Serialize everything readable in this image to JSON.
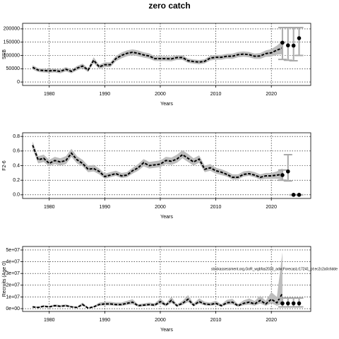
{
  "chart_data": [
    {
      "type": "line",
      "title": "zero catch",
      "xlabel": "Years",
      "ylabel": "SSB",
      "grid": true,
      "x": [
        1977,
        1978,
        1979,
        1980,
        1981,
        1982,
        1983,
        1984,
        1985,
        1986,
        1987,
        1988,
        1989,
        1990,
        1991,
        1992,
        1993,
        1994,
        1995,
        1996,
        1997,
        1998,
        1999,
        2000,
        2001,
        2002,
        2003,
        2004,
        2005,
        2006,
        2007,
        2008,
        2009,
        2010,
        2011,
        2012,
        2013,
        2014,
        2015,
        2016,
        2017,
        2018,
        2019,
        2020,
        2021,
        2022
      ],
      "values": [
        55000,
        45000,
        43000,
        42000,
        43000,
        40000,
        48000,
        40000,
        52000,
        60000,
        45000,
        82000,
        57000,
        65000,
        65000,
        88000,
        100000,
        108000,
        112000,
        108000,
        102000,
        98000,
        88000,
        88000,
        88000,
        87000,
        92000,
        92000,
        80000,
        77000,
        75000,
        78000,
        90000,
        93000,
        93000,
        97000,
        97000,
        103000,
        105000,
        103000,
        97000,
        98000,
        107000,
        110000,
        120000,
        128000
      ],
      "lower": [
        47000,
        38000,
        36000,
        35000,
        36000,
        33000,
        40000,
        33000,
        44000,
        51000,
        38000,
        71000,
        49000,
        56000,
        56000,
        78000,
        89000,
        97000,
        101000,
        97000,
        92000,
        88000,
        79000,
        79000,
        79000,
        78000,
        83000,
        83000,
        72000,
        69000,
        67000,
        70000,
        81000,
        84000,
        84000,
        88000,
        87000,
        93000,
        95000,
        93000,
        87000,
        87000,
        95000,
        96000,
        103000,
        105000
      ],
      "upper": [
        63000,
        52000,
        50000,
        49000,
        50000,
        47000,
        56000,
        47000,
        60000,
        69000,
        52000,
        93000,
        65000,
        74000,
        74000,
        98000,
        111000,
        119000,
        123000,
        119000,
        112000,
        108000,
        97000,
        97000,
        97000,
        96000,
        101000,
        101000,
        88000,
        85000,
        83000,
        86000,
        99000,
        102000,
        102000,
        106000,
        107000,
        113000,
        115000,
        113000,
        107000,
        109000,
        119000,
        124000,
        137000,
        155000
      ],
      "forecast": {
        "x": [
          2022,
          2023,
          2024,
          2025
        ],
        "values": [
          148000,
          138000,
          137000,
          165000
        ],
        "low": [
          85000,
          82000,
          80000,
          100000
        ],
        "high": [
          205000,
          205000,
          205000,
          205000
        ]
      },
      "xlim": [
        1975.2,
        2027.1
      ],
      "xticks": [
        1980,
        1990,
        2000,
        2010,
        2020
      ],
      "ylim": [
        -13000,
        221000
      ],
      "yticks": [
        0,
        50000,
        100000,
        150000,
        200000
      ]
    },
    {
      "type": "line",
      "xlabel": "Years",
      "ylabel": "F2-6",
      "grid": true,
      "x": [
        1977,
        1978,
        1979,
        1980,
        1981,
        1982,
        1983,
        1984,
        1985,
        1986,
        1987,
        1988,
        1989,
        1990,
        1991,
        1992,
        1993,
        1994,
        1995,
        1996,
        1997,
        1998,
        1999,
        2000,
        2001,
        2002,
        2003,
        2004,
        2005,
        2006,
        2007,
        2008,
        2009,
        2010,
        2011,
        2012,
        2013,
        2014,
        2015,
        2016,
        2017,
        2018,
        2019,
        2020,
        2021,
        2022
      ],
      "values": [
        0.68,
        0.48,
        0.5,
        0.43,
        0.47,
        0.45,
        0.47,
        0.57,
        0.48,
        0.43,
        0.35,
        0.36,
        0.32,
        0.25,
        0.27,
        0.29,
        0.26,
        0.27,
        0.33,
        0.37,
        0.44,
        0.4,
        0.41,
        0.42,
        0.47,
        0.46,
        0.49,
        0.55,
        0.5,
        0.45,
        0.49,
        0.35,
        0.37,
        0.33,
        0.31,
        0.28,
        0.24,
        0.24,
        0.28,
        0.29,
        0.27,
        0.24,
        0.26,
        0.26,
        0.27,
        0.28
      ],
      "lower": [
        0.63,
        0.43,
        0.45,
        0.39,
        0.42,
        0.4,
        0.42,
        0.52,
        0.43,
        0.39,
        0.31,
        0.32,
        0.28,
        0.22,
        0.24,
        0.26,
        0.23,
        0.24,
        0.29,
        0.33,
        0.39,
        0.36,
        0.37,
        0.38,
        0.42,
        0.41,
        0.44,
        0.5,
        0.45,
        0.4,
        0.44,
        0.31,
        0.33,
        0.29,
        0.27,
        0.25,
        0.21,
        0.21,
        0.25,
        0.26,
        0.24,
        0.21,
        0.22,
        0.22,
        0.22,
        0.21
      ],
      "upper": [
        0.73,
        0.53,
        0.55,
        0.48,
        0.52,
        0.5,
        0.53,
        0.63,
        0.53,
        0.48,
        0.4,
        0.41,
        0.36,
        0.29,
        0.31,
        0.33,
        0.3,
        0.31,
        0.37,
        0.42,
        0.49,
        0.45,
        0.46,
        0.47,
        0.52,
        0.51,
        0.55,
        0.61,
        0.56,
        0.5,
        0.54,
        0.4,
        0.42,
        0.37,
        0.35,
        0.32,
        0.28,
        0.28,
        0.32,
        0.33,
        0.31,
        0.28,
        0.3,
        0.3,
        0.32,
        0.36
      ],
      "forecast": {
        "x": [
          2022,
          2023,
          2024,
          2025
        ],
        "values": [
          0.27,
          0.32,
          0,
          0
        ],
        "low": [
          0.2,
          0.19,
          0,
          0
        ],
        "high": [
          0.34,
          0.55,
          0,
          0
        ]
      },
      "xlim": [
        1975.2,
        2027.1
      ],
      "xticks": [
        1980,
        1990,
        2000,
        2010,
        2020
      ],
      "ylim": [
        -0.05,
        0.85
      ],
      "yticks": [
        {
          "value": 0,
          "label": "0.0"
        },
        0.2,
        0.4,
        0.6,
        0.8
      ]
    },
    {
      "type": "line",
      "xlabel": "Years",
      "ylabel": "Recruits (Age 0)",
      "grid": true,
      "annotation": "stockassessment.org,GoR_wgbfas2023_advcForecast,r17241_pt:ec2c2a0c6dde",
      "x": [
        1977,
        1978,
        1979,
        1980,
        1981,
        1982,
        1983,
        1984,
        1985,
        1986,
        1987,
        1988,
        1989,
        1990,
        1991,
        1992,
        1993,
        1994,
        1995,
        1996,
        1997,
        1998,
        1999,
        2000,
        2001,
        2002,
        2003,
        2004,
        2005,
        2006,
        2007,
        2008,
        2009,
        2010,
        2011,
        2012,
        2013,
        2014,
        2015,
        2016,
        2017,
        2018,
        2019,
        2020,
        2021,
        2022
      ],
      "values": [
        1500000,
        1000000,
        2000000,
        1500000,
        2500000,
        2000000,
        2500000,
        1500000,
        1000000,
        3500000,
        500000,
        1500000,
        3500000,
        4000000,
        4000000,
        3500000,
        3500000,
        4500000,
        5500000,
        2500000,
        3000000,
        3500000,
        3000000,
        6000000,
        3000000,
        7000000,
        2500000,
        4500000,
        8000000,
        3000000,
        6000000,
        4000000,
        3500000,
        4500000,
        2500000,
        5000000,
        5500000,
        2500000,
        4500000,
        5500000,
        4000000,
        7000000,
        4000000,
        8000000,
        5000000,
        13000000
      ],
      "lower": [
        1000000,
        600000,
        1300000,
        1000000,
        1700000,
        1300000,
        1700000,
        1000000,
        600000,
        2400000,
        300000,
        1000000,
        2400000,
        2800000,
        2800000,
        2400000,
        2400000,
        3100000,
        3800000,
        1700000,
        2000000,
        2400000,
        2000000,
        4200000,
        2000000,
        4900000,
        1700000,
        3100000,
        5600000,
        2000000,
        4200000,
        2800000,
        2400000,
        3100000,
        1700000,
        3400000,
        3700000,
        1600000,
        2900000,
        3500000,
        2500000,
        4400000,
        2400000,
        4500000,
        2500000,
        4000000
      ],
      "upper": [
        2200000,
        1600000,
        3000000,
        2200000,
        3700000,
        3000000,
        3700000,
        2200000,
        1600000,
        5200000,
        800000,
        2200000,
        5200000,
        5800000,
        5800000,
        5200000,
        5200000,
        6600000,
        8000000,
        3700000,
        4500000,
        5200000,
        4500000,
        8600000,
        4500000,
        10000000,
        3700000,
        6600000,
        11500000,
        4500000,
        8700000,
        5900000,
        5200000,
        6700000,
        3800000,
        7500000,
        8300000,
        3900000,
        7000000,
        8700000,
        6500000,
        11000000,
        6700000,
        14000000,
        10000000,
        48000000
      ],
      "forecast": {
        "x": [
          2022,
          2023,
          2024,
          2025
        ],
        "values": [
          4500000,
          4500000,
          4500000,
          4500000
        ],
        "low": [
          1500000,
          1500000,
          1500000,
          1500000
        ],
        "high": [
          9000000,
          9000000,
          9000000,
          9000000
        ]
      },
      "xlim": [
        1975.2,
        2027.1
      ],
      "xticks": [
        1980,
        1990,
        2000,
        2010,
        2020
      ],
      "ylim": [
        -2400000,
        53000000
      ],
      "yticks": [
        {
          "value": 0,
          "label": "0e+00"
        },
        {
          "value": 10000000,
          "label": "1e+07"
        },
        {
          "value": 20000000,
          "label": "2e+07"
        },
        {
          "value": 30000000,
          "label": "3e+07"
        },
        {
          "value": 40000000,
          "label": "4e+07"
        },
        {
          "value": 50000000,
          "label": "5e+07"
        }
      ]
    }
  ]
}
